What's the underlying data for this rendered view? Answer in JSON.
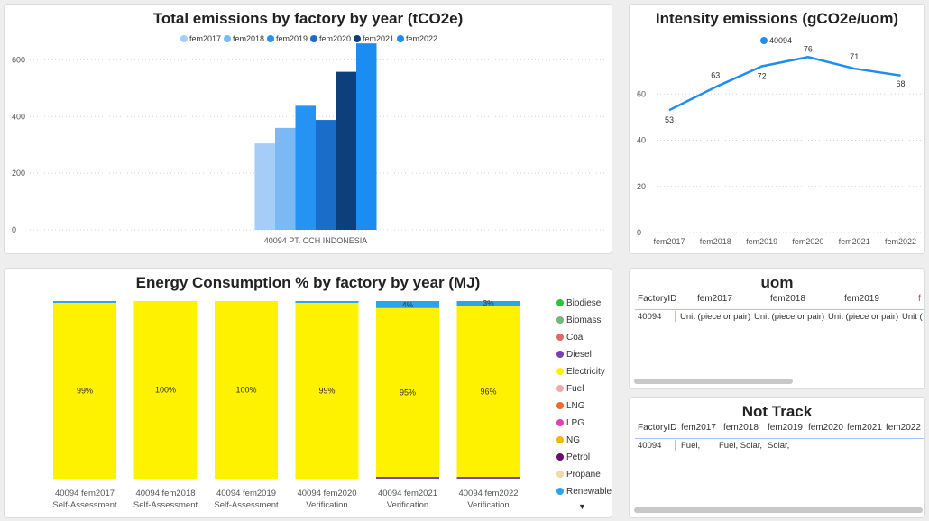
{
  "colors": {
    "fem2017": "#a6cdf7",
    "fem2018": "#7ab9f6",
    "fem2019": "#2593f3",
    "fem2020": "#1a6ec9",
    "fem2021": "#0d3f7d",
    "fem2022": "#1b8cf2",
    "intensity_line": "#1f8ef0",
    "electricity": "#fff200",
    "renewable": "#2ba3ef",
    "diesel": "#7a3fb5"
  },
  "chart_data": [
    {
      "type": "bar",
      "title": "Total emissions by factory by year (tCO2e)",
      "categories": [
        "40094 PT. CCH INDONESIA"
      ],
      "series": [
        {
          "name": "fem2017",
          "values": [
            305
          ]
        },
        {
          "name": "fem2018",
          "values": [
            360
          ]
        },
        {
          "name": "fem2019",
          "values": [
            438
          ]
        },
        {
          "name": "fem2020",
          "values": [
            388
          ]
        },
        {
          "name": "fem2021",
          "values": [
            558
          ]
        },
        {
          "name": "fem2022",
          "values": [
            658
          ]
        }
      ],
      "yticks": [
        0,
        200,
        400,
        600
      ],
      "ylim": [
        0,
        700
      ],
      "legend": "top-center",
      "grid": true
    },
    {
      "type": "line",
      "title": "Intensity emissions (gCO2e/uom)",
      "legend": {
        "label": "40094",
        "position": "top-center"
      },
      "x": [
        "fem2017",
        "fem2018",
        "fem2019",
        "fem2020",
        "fem2021",
        "fem2022"
      ],
      "series": [
        {
          "name": "40094",
          "values": [
            53,
            63,
            72,
            76,
            71,
            68
          ]
        }
      ],
      "yticks": [
        0,
        20,
        40,
        60
      ],
      "ylim": [
        0,
        80
      ],
      "grid": true
    },
    {
      "type": "bar",
      "stacked": "percent",
      "title": "Energy Consumption % by factory by year (MJ)",
      "categories": [
        {
          "line1": "40094 fem2017",
          "line2": "Self-Assessment"
        },
        {
          "line1": "40094 fem2018",
          "line2": "Self-Assessment"
        },
        {
          "line1": "40094 fem2019",
          "line2": "Self-Assessment"
        },
        {
          "line1": "40094 fem2020",
          "line2": "Verification"
        },
        {
          "line1": "40094 fem2021",
          "line2": "Verification"
        },
        {
          "line1": "40094 fem2022",
          "line2": "Verification"
        }
      ],
      "series": [
        {
          "name": "Electricity",
          "values": [
            99,
            100,
            100,
            99,
            95,
            96
          ],
          "labels": [
            "99%",
            "100%",
            "100%",
            "99%",
            "95%",
            "96%"
          ]
        },
        {
          "name": "Renewable",
          "values": [
            1,
            0,
            0,
            1,
            4,
            3
          ],
          "labels": [
            "",
            "",
            "",
            "",
            "4%",
            "3%"
          ]
        },
        {
          "name": "Diesel",
          "values": [
            0,
            0,
            0,
            0,
            1,
            1
          ],
          "labels": [
            "",
            "",
            "",
            "",
            "",
            ""
          ]
        }
      ],
      "legend": [
        {
          "name": "Biodiesel",
          "color": "#26c63b"
        },
        {
          "name": "Biomass",
          "color": "#74b57a"
        },
        {
          "name": "Coal",
          "color": "#e06a6a"
        },
        {
          "name": "Diesel",
          "color": "#7a3fb5"
        },
        {
          "name": "Electricity",
          "color": "#fff200"
        },
        {
          "name": "Fuel",
          "color": "#f2a9ab"
        },
        {
          "name": "LNG",
          "color": "#ee6a31"
        },
        {
          "name": "LPG",
          "color": "#e63fb3"
        },
        {
          "name": "NG",
          "color": "#f2b705"
        },
        {
          "name": "Petrol",
          "color": "#6b0e6e"
        },
        {
          "name": "Propane",
          "color": "#f2d9a6"
        },
        {
          "name": "Renewable",
          "color": "#2ba3ef"
        }
      ]
    }
  ],
  "uom_table": {
    "title": "uom",
    "headers": [
      "FactoryID",
      "fem2017",
      "fem2018",
      "fem2019",
      "f"
    ],
    "rows": [
      [
        "40094",
        "Unit (piece or pair)",
        "Unit (piece or pair)",
        "Unit (piece or pair)",
        "Unit ("
      ]
    ]
  },
  "nottrack_table": {
    "title": "Not Track",
    "headers": [
      "FactoryID",
      "fem2017",
      "fem2018",
      "fem2019",
      "fem2020",
      "fem2021",
      "fem2022"
    ],
    "rows": [
      [
        "40094",
        "Fuel,",
        "Fuel, Solar,",
        "Solar,",
        "",
        "",
        ""
      ]
    ]
  },
  "legend_more_arrow": "▼"
}
